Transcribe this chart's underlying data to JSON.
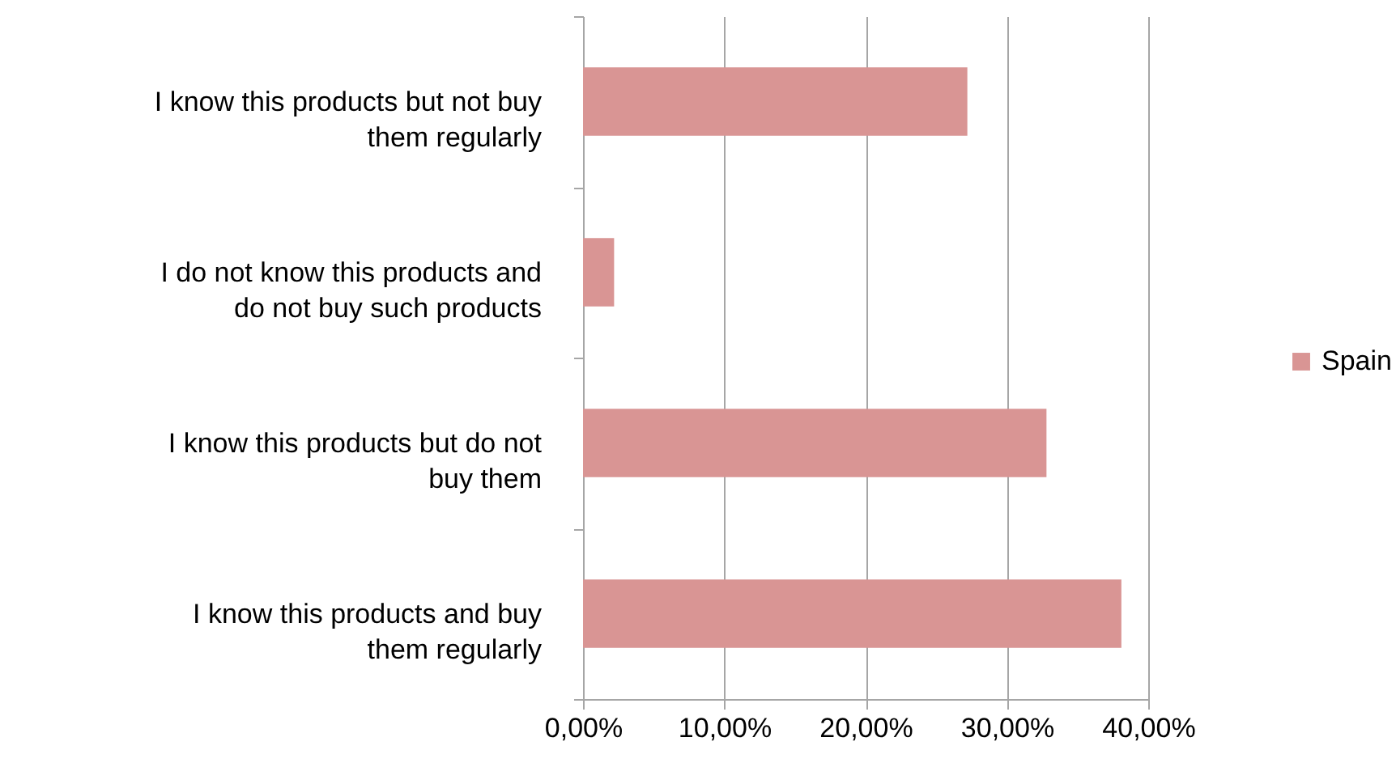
{
  "chart_data": {
    "type": "bar",
    "orientation": "horizontal",
    "categories": [
      "I know this products but not buy them regularly",
      "I do not know this products and do not buy such products",
      "I know this products but do not buy them",
      "I know this products and buy them regularly"
    ],
    "series": [
      {
        "name": "Spain",
        "color": "#d99594",
        "values": [
          27.2,
          2.2,
          32.8,
          38.1
        ]
      }
    ],
    "xlim": [
      0,
      40
    ],
    "xticks": [
      {
        "value": 0,
        "label": "0,00%"
      },
      {
        "value": 10,
        "label": "10,00%"
      },
      {
        "value": 20,
        "label": "20,00%"
      },
      {
        "value": 30,
        "label": "30,00%"
      },
      {
        "value": 40,
        "label": "40,00%"
      }
    ],
    "grid": "x",
    "legend": "right"
  }
}
